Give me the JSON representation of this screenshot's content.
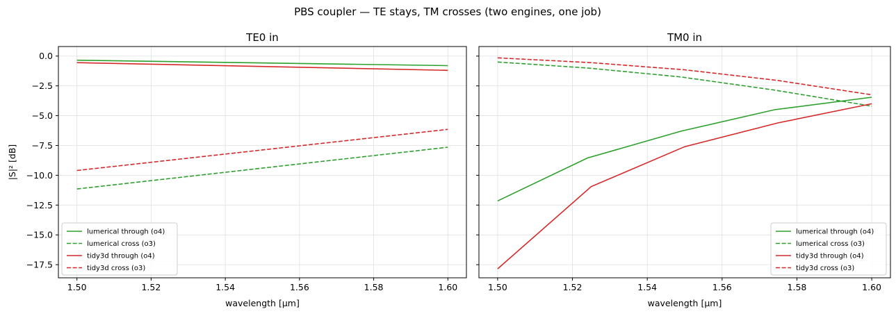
{
  "figure": {
    "suptitle": "PBS coupler — TE stays, TM crosses (two engines, one job)"
  },
  "colors": {
    "lumerical": "#2ca02c",
    "tidy3d": "#d62728",
    "grid": "#e0e0e0",
    "axis": "#000000"
  },
  "chart_data": [
    {
      "type": "line",
      "title": "TE0 in",
      "xlabel": "wavelength [µm]",
      "ylabel": "|S|² [dB]",
      "xlim": [
        1.495,
        1.605
      ],
      "ylim": [
        -18.6,
        0.8
      ],
      "xticks": [
        1.5,
        1.52,
        1.54,
        1.56,
        1.58,
        1.6
      ],
      "xtick_labels": [
        "1.50",
        "1.52",
        "1.54",
        "1.56",
        "1.58",
        "1.60"
      ],
      "yticks": [
        0.0,
        -2.5,
        -5.0,
        -7.5,
        -10.0,
        -12.5,
        -15.0,
        -17.5
      ],
      "ytick_labels": [
        "0.0",
        "−2.5",
        "−5.0",
        "−7.5",
        "−10.0",
        "−12.5",
        "−15.0",
        "−17.5"
      ],
      "grid": true,
      "legend_position": "lower-left",
      "series": [
        {
          "name": "lumerical through (o4)",
          "color_key": "lumerical",
          "style": "solid",
          "x": [
            1.5,
            1.6
          ],
          "y": [
            -0.35,
            -0.8
          ]
        },
        {
          "name": "lumerical cross (o3)",
          "color_key": "lumerical",
          "style": "dashed",
          "x": [
            1.5,
            1.6
          ],
          "y": [
            -11.15,
            -7.65
          ]
        },
        {
          "name": "tidy3d through (o4)",
          "color_key": "tidy3d",
          "style": "solid",
          "x": [
            1.5,
            1.6
          ],
          "y": [
            -0.55,
            -1.2
          ]
        },
        {
          "name": "tidy3d cross (o3)",
          "color_key": "tidy3d",
          "style": "dashed",
          "x": [
            1.5,
            1.6
          ],
          "y": [
            -9.6,
            -6.15
          ]
        }
      ]
    },
    {
      "type": "line",
      "title": "TM0 in",
      "xlabel": "wavelength [µm]",
      "ylabel": "",
      "xlim": [
        1.495,
        1.605
      ],
      "ylim": [
        -18.6,
        0.8
      ],
      "xticks": [
        1.5,
        1.52,
        1.54,
        1.56,
        1.58,
        1.6
      ],
      "xtick_labels": [
        "1.50",
        "1.52",
        "1.54",
        "1.56",
        "1.58",
        "1.60"
      ],
      "yticks": [
        0.0,
        -2.5,
        -5.0,
        -7.5,
        -10.0,
        -12.5,
        -15.0,
        -17.5
      ],
      "ytick_labels": [],
      "grid": true,
      "legend_position": "lower-right",
      "series": [
        {
          "name": "lumerical through (o4)",
          "color_key": "lumerical",
          "style": "solid",
          "x": [
            1.5,
            1.524,
            1.549,
            1.574,
            1.6
          ],
          "y": [
            -12.15,
            -8.55,
            -6.3,
            -4.5,
            -3.45
          ]
        },
        {
          "name": "lumerical cross (o3)",
          "color_key": "lumerical",
          "style": "dashed",
          "x": [
            1.5,
            1.524,
            1.549,
            1.574,
            1.6
          ],
          "y": [
            -0.5,
            -1.0,
            -1.75,
            -2.85,
            -4.2
          ]
        },
        {
          "name": "tidy3d through (o4)",
          "color_key": "tidy3d",
          "style": "solid",
          "x": [
            1.5,
            1.525,
            1.55,
            1.575,
            1.6
          ],
          "y": [
            -17.85,
            -10.95,
            -7.6,
            -5.6,
            -4.0
          ]
        },
        {
          "name": "tidy3d cross (o3)",
          "color_key": "tidy3d",
          "style": "dashed",
          "x": [
            1.5,
            1.525,
            1.55,
            1.575,
            1.6
          ],
          "y": [
            -0.15,
            -0.55,
            -1.15,
            -2.05,
            -3.25
          ]
        }
      ]
    }
  ]
}
